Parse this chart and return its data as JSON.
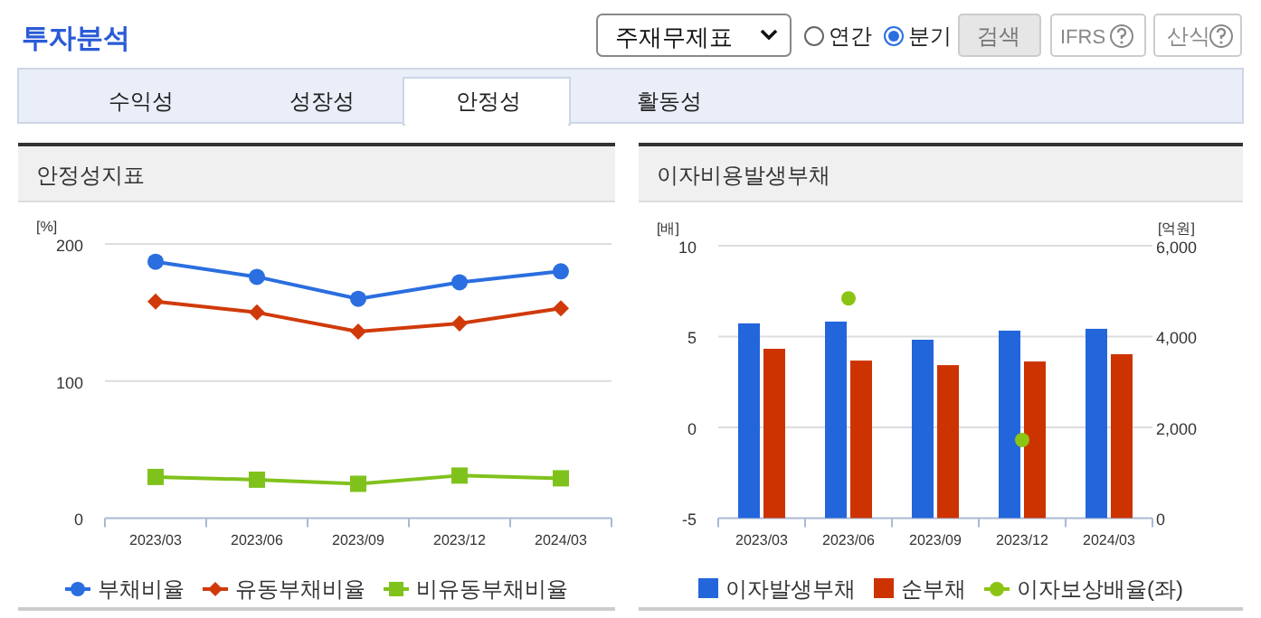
{
  "chart_data": [
    {
      "type": "other",
      "title": "투자분석",
      "annotations": [
        "주재무제표",
        "연간",
        "분기",
        "검색",
        "IFRS",
        "산식",
        "수익성",
        "성장성",
        "안정성",
        "활동성"
      ]
    },
    {
      "type": "line",
      "title": "안정성지표",
      "ylabel": "[%]",
      "categories": [
        "2023/03",
        "2023/06",
        "2023/09",
        "2023/12",
        "2024/03"
      ],
      "ylim": [
        0,
        200
      ],
      "yticks": [
        0,
        100,
        200
      ],
      "grid": "y",
      "legend": "bottom",
      "series": [
        {
          "name": "부채비율",
          "color": "#2a6ee0",
          "marker": "circle",
          "values": [
            187,
            176,
            160,
            172,
            180
          ]
        },
        {
          "name": "유동부채비율",
          "color": "#d03a0a",
          "marker": "diamond",
          "values": [
            158,
            150,
            136,
            142,
            153
          ]
        },
        {
          "name": "비유동부채비율",
          "color": "#80c21c",
          "marker": "square",
          "values": [
            30,
            28,
            25,
            31,
            29
          ]
        }
      ]
    },
    {
      "type": "bar",
      "title": "이자비용발생부채",
      "ylabel": "[배]",
      "y2label": "[억원]",
      "categories": [
        "2023/03",
        "2023/06",
        "2023/09",
        "2023/12",
        "2024/03"
      ],
      "ylim": [
        -5,
        10
      ],
      "yticks": [
        -5,
        0,
        5,
        10
      ],
      "y2lim": [
        0,
        6000
      ],
      "y2ticks": [
        0,
        {
          "value": 2000,
          "label": "2,000"
        },
        {
          "value": 4000,
          "label": "4,000"
        },
        {
          "value": 6000,
          "label": "6,000"
        }
      ],
      "grid": "y",
      "legend": "bottom",
      "series": [
        {
          "name": "이자발생부채",
          "color": "#2366dc",
          "axis": "y2",
          "values": [
            4290,
            4330,
            3930,
            4130,
            4170
          ]
        },
        {
          "name": "순부채",
          "color": "#cc3300",
          "axis": "y2",
          "values": [
            3730,
            3470,
            3370,
            3450,
            3610
          ]
        },
        {
          "name": "이자보상배율(좌)",
          "type": "scatter",
          "color": "#8cc415",
          "axis": "y",
          "values": [
            null,
            7.1,
            null,
            -0.7,
            null
          ]
        }
      ]
    }
  ]
}
